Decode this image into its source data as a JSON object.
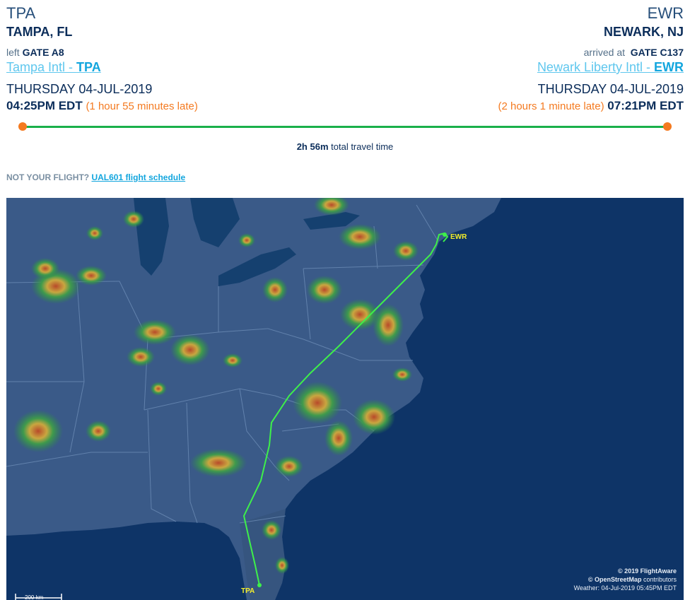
{
  "origin": {
    "code": "TPA",
    "city": "TAMPA, FL",
    "gate_prefix": "left",
    "gate": "GATE A8",
    "airport_name": "Tampa Intl - ",
    "airport_code": "TPA",
    "date": "THURSDAY 04-JUL-2019",
    "time": "04:25PM EDT",
    "delay": "(1 hour 55 minutes late)"
  },
  "destination": {
    "code": "EWR",
    "city": "NEWARK, NJ",
    "gate_prefix": "arrived at",
    "gate": "GATE C137",
    "airport_name": "Newark Liberty Intl - ",
    "airport_code": "EWR",
    "date": "THURSDAY 04-JUL-2019",
    "time": "07:21PM EDT",
    "delay": "(2 hours 1 minute late)"
  },
  "travel": {
    "duration": "2h 56m",
    "label": "total travel time",
    "progress": 1.0
  },
  "not_your_flight": {
    "prompt": "NOT YOUR FLIGHT?",
    "link": "UAL601 flight schedule"
  },
  "map": {
    "origin_label": "TPA",
    "destination_label": "EWR",
    "scale_label": "200 km",
    "credit_1": "© 2019 FlightAware",
    "credit_2a": "© OpenStreetMap",
    "credit_2b": " contributors",
    "credit_3": "Weather: 04-Jul-2019 05:45PM EDT",
    "colors": {
      "land": "#3a5a88",
      "ocean": "#0e3467",
      "route": "#3ef04a",
      "label": "#f4ee2a"
    }
  }
}
